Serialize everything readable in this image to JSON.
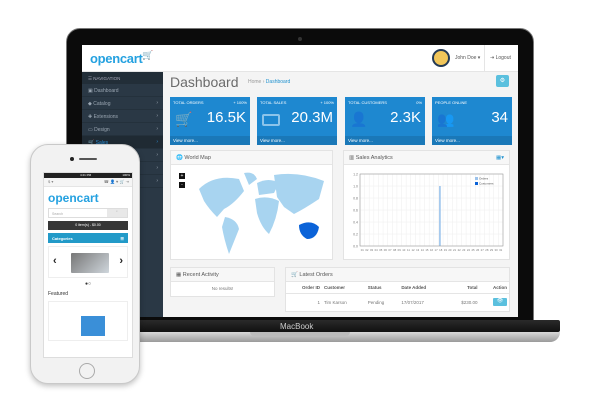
{
  "device": {
    "label": "MacBook"
  },
  "header": {
    "logo": "opencart",
    "user": "John Doe",
    "logout": "Logout"
  },
  "sidebar": {
    "heading": "NAVIGATION",
    "items": [
      {
        "label": "Dashboard",
        "icon": "dashboard-icon"
      },
      {
        "label": "Catalog",
        "icon": "tags-icon"
      },
      {
        "label": "Extensions",
        "icon": "puzzle-icon"
      },
      {
        "label": "Design",
        "icon": "monitor-icon"
      },
      {
        "label": "Sales",
        "icon": "cart-icon",
        "active": true
      }
    ]
  },
  "page": {
    "title": "Dashboard",
    "breadcrumb": [
      "Home",
      "Dashboard"
    ]
  },
  "tiles": [
    {
      "label": "Total Orders",
      "change": "+ 100%",
      "value": "16.5K",
      "icon": "cart-icon",
      "link": "View more..."
    },
    {
      "label": "Total Sales",
      "change": "+ 100%",
      "value": "20.3M",
      "icon": "credit-card-icon",
      "link": "View more..."
    },
    {
      "label": "Total Customers",
      "change": "0%",
      "value": "2.3K",
      "icon": "user-icon",
      "link": "View more..."
    },
    {
      "label": "People Online",
      "change": "",
      "value": "34",
      "icon": "users-icon",
      "link": "View more..."
    }
  ],
  "world_map": {
    "title": "World Map",
    "highlight": "Australia",
    "zoom_in": "+",
    "zoom_out": "-",
    "colors": {
      "land": "#a8d4f0",
      "highlight": "#0b63d8"
    }
  },
  "sales": {
    "title": "Sales Analytics"
  },
  "chart_data": {
    "type": "bar",
    "x": [
      "01",
      "02",
      "03",
      "04",
      "05",
      "06",
      "07",
      "08",
      "09",
      "10",
      "11",
      "12",
      "13",
      "14",
      "15",
      "16",
      "17",
      "18",
      "19",
      "20",
      "21",
      "22",
      "23",
      "24",
      "25",
      "26",
      "27",
      "28",
      "29",
      "30",
      "31"
    ],
    "series": [
      {
        "name": "Orders",
        "values": [
          0,
          0,
          0,
          0,
          0,
          0,
          0,
          0,
          0,
          0,
          0,
          0,
          0,
          0,
          0,
          0,
          0,
          1,
          0,
          0,
          0,
          0,
          0,
          0,
          0,
          0,
          0,
          0,
          0,
          0,
          0
        ]
      },
      {
        "name": "Customers",
        "values": [
          0,
          0,
          0,
          0,
          0,
          0,
          0,
          0,
          0,
          0,
          0,
          0,
          0,
          0,
          0,
          0,
          0,
          0,
          0,
          0,
          0,
          0,
          0,
          0,
          0,
          0,
          0,
          0,
          0,
          0,
          0
        ]
      }
    ],
    "ylim": [
      0,
      1.2
    ],
    "yticks": [
      "0.0",
      "0.2",
      "0.4",
      "0.6",
      "0.8",
      "1.0",
      "1.2"
    ],
    "legend": "top-right",
    "grid": true,
    "colors": [
      "#9cc3ec",
      "#0b63d8"
    ]
  },
  "activity": {
    "title": "Recent Activity",
    "empty": "No results!"
  },
  "orders": {
    "title": "Latest Orders",
    "columns": [
      "Order ID",
      "Customer",
      "Status",
      "Date Added",
      "Total",
      "Action"
    ],
    "rows": [
      {
        "id": "1",
        "customer": "Tim Karson",
        "status": "Pending",
        "date": "17/07/2017",
        "total": "$230.00"
      }
    ]
  },
  "phone": {
    "time": "4:21 PM",
    "battery": "100%",
    "logo": "opencart",
    "search_placeholder": "Search",
    "cart": "0 item(s) - $0.00",
    "categories": "Categories",
    "featured": "Featured"
  }
}
